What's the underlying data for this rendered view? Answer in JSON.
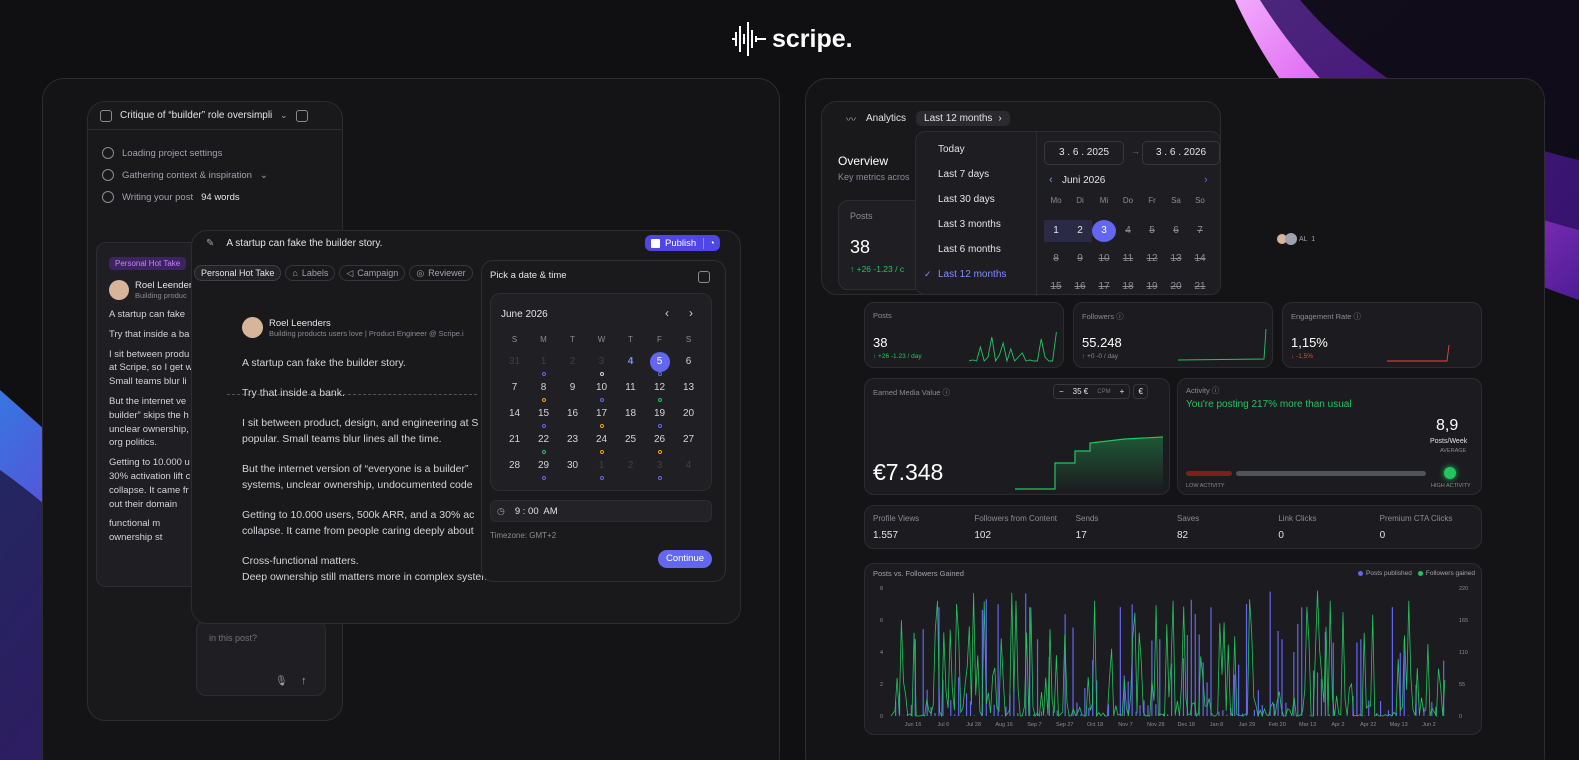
{
  "brand": {
    "name": "scripe."
  },
  "editor": {
    "title": "Critique of “builder” role oversimplifi",
    "steps": [
      "Loading project settings",
      "Gathering context & inspiration",
      "Writing your post"
    ],
    "words": "94 words",
    "tag": "Personal Hot Take",
    "author": "Roel Leenders",
    "author_sub": "Building produc",
    "lines": [
      "A startup can fake",
      "Try that inside a ba",
      "I sit between produ",
      "at Scripe, so I get w",
      "Small teams blur li",
      "But the internet ve",
      "builder” skips the h",
      "unclear ownership,",
      "org politics.",
      "Getting to 10.000 u",
      "30% activation lift c",
      "collapse. It came fr",
      "out their domain",
      "functional m",
      "ownership st"
    ],
    "chat_placeholder": "in this post?"
  },
  "post": {
    "title": "A startup can fake the builder story.",
    "publish": "Publish",
    "chips": [
      "Personal Hot Take",
      "Labels",
      "Campaign",
      "Reviewer"
    ],
    "author": "Roel Leenders",
    "author_sub": "Building products users love | Product Engineer @ Scripe.i",
    "lines": [
      "A startup can fake the builder story.",
      "Try that inside a bank.",
      "I sit between product, design, and engineering at S",
      "popular. Small teams blur lines all the time.",
      "But the internet version of “everyone is a builder”",
      "systems, unclear ownership, undocumented code",
      "Getting to 10.000 users, 500k ARR, and a 30% ac",
      "collapse. It came from people caring deeply about",
      "Cross-functional matters.",
      "Deep ownership still matters more in complex systems."
    ]
  },
  "datetime": {
    "heading": "Pick a date & time",
    "month": "June 2026",
    "weekdays": [
      "S",
      "M",
      "T",
      "W",
      "T",
      "F",
      "S"
    ],
    "time": "9 : 00  AM",
    "timezone": "Timezone: GMT+2",
    "continue": "Continue"
  },
  "analytics": {
    "tab": "Analytics",
    "range": "Last 12 months",
    "overview": "Overview",
    "overview_sub": "Key metrics acros",
    "posts_label": "Posts",
    "posts_value": "38",
    "posts_delta": "↑ +26 -1.23 / c",
    "avatar_text": "AL  1",
    "options": [
      "Today",
      "Last 7 days",
      "Last 30 days",
      "Last 3 months",
      "Last 6 months",
      "Last 12 months"
    ],
    "date_from": "3 . 6 . 2025",
    "date_to": "3 . 6 . 2026",
    "cal_month": "Juni 2026",
    "cal_weekdays": [
      "Mo",
      "Di",
      "Mi",
      "Do",
      "Fr",
      "Sa",
      "So"
    ],
    "cal_days": [
      "1",
      "2",
      "3",
      "4",
      "5",
      "6",
      "7",
      "8",
      "9",
      "10",
      "11",
      "12",
      "13",
      "14",
      "15",
      "16",
      "17",
      "18",
      "19",
      "20",
      "21"
    ],
    "metrics": [
      {
        "label": "Posts",
        "value": "38",
        "delta": "↑ +26 -1.23 / day",
        "delta_color": "#22c55e"
      },
      {
        "label": "Followers ⓘ",
        "value": "55.248",
        "delta": "↑ +0 -0 / day",
        "delta_color": "#8a8a93"
      },
      {
        "label": "Engagement Rate ⓘ",
        "value": "1,15%",
        "delta": "↓ -1,5%",
        "delta_color": "#ef4444"
      }
    ],
    "emv": {
      "label": "Earned Media Value ⓘ",
      "value": "€7.348",
      "cpm_value": "35 €",
      "cpm": "CPM",
      "currency": "€"
    },
    "activity": {
      "label": "Activity ⓘ",
      "message": "You're posting 217% more than usual",
      "value": "8,9",
      "unit": "Posts/Week",
      "avg": "AVERAGE",
      "low": "LOW ACTIVITY",
      "high": "HIGH ACTIVITY"
    },
    "stats": [
      {
        "label": "Profile Views",
        "value": "1.557"
      },
      {
        "label": "Followers from Content",
        "value": "102"
      },
      {
        "label": "Sends",
        "value": "17"
      },
      {
        "label": "Saves",
        "value": "82"
      },
      {
        "label": "Link Clicks",
        "value": "0"
      },
      {
        "label": "Premium CTA Clicks",
        "value": "0"
      }
    ],
    "chart": {
      "title": "Posts vs. Followers Gained",
      "legend_posts": "Posts published",
      "legend_followers": "Followers gained"
    }
  },
  "colors": {
    "accent": "#6366f1",
    "green": "#22c55e",
    "red": "#ef4444",
    "bg": "#101012"
  },
  "chart_data": {
    "type": "bar",
    "title": "Posts vs. Followers Gained",
    "x": [
      "Jun 16",
      "Jul 6",
      "Jul 28",
      "Aug 16",
      "Sep 7",
      "Sep 27",
      "Oct 18",
      "Nov 7",
      "Nov 28",
      "Dec 18",
      "Jan 8",
      "Jan 29",
      "Feb 20",
      "Mar 13",
      "Apr 2",
      "Apr 22",
      "May 13",
      "Jun 2"
    ],
    "ylim_left": [
      0,
      8
    ],
    "yticks_left": [
      "0",
      "2",
      "4",
      "6",
      "8"
    ],
    "ylim_right": [
      0,
      220
    ],
    "yticks_right": [
      "0",
      "55",
      "110",
      "165",
      "220"
    ],
    "series": [
      {
        "name": "Posts published",
        "color": "#6366f1"
      },
      {
        "name": "Followers gained",
        "color": "#22c55e"
      }
    ],
    "legend": "top-right",
    "grid": false
  }
}
